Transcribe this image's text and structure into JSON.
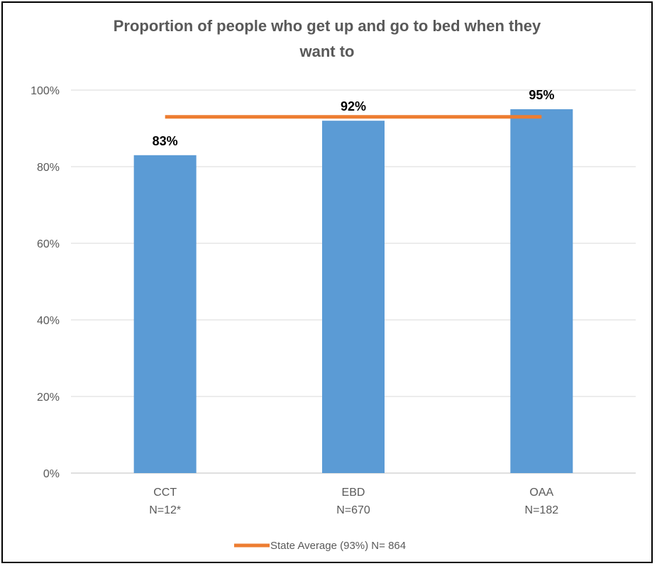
{
  "chart_data": {
    "type": "bar",
    "title": "Proportion of people who get up and go to bed when they want to",
    "title_lines": [
      "Proportion of people who get up and go to bed when they",
      "want to"
    ],
    "categories": [
      "CCT",
      "EBD",
      "OAA"
    ],
    "category_sublabels": [
      "N=12*",
      "N=670",
      "N=182"
    ],
    "values": [
      83,
      92,
      95
    ],
    "data_labels": [
      "83%",
      "92%",
      "95%"
    ],
    "xlabel": "",
    "ylabel": "",
    "ylim": [
      0,
      100
    ],
    "y_ticks": [
      0,
      20,
      40,
      60,
      80,
      100
    ],
    "y_tick_labels": [
      "0%",
      "20%",
      "40%",
      "60%",
      "80%",
      "100%"
    ],
    "grid": true,
    "legend_position": "bottom",
    "series": [
      {
        "name": "",
        "type": "bar",
        "values": [
          83,
          92,
          95
        ],
        "color": "#5B9BD5"
      },
      {
        "name": "State Average (93%) N= 864",
        "type": "line",
        "values": [
          93,
          93,
          93
        ],
        "color": "#ED7D31"
      }
    ]
  }
}
